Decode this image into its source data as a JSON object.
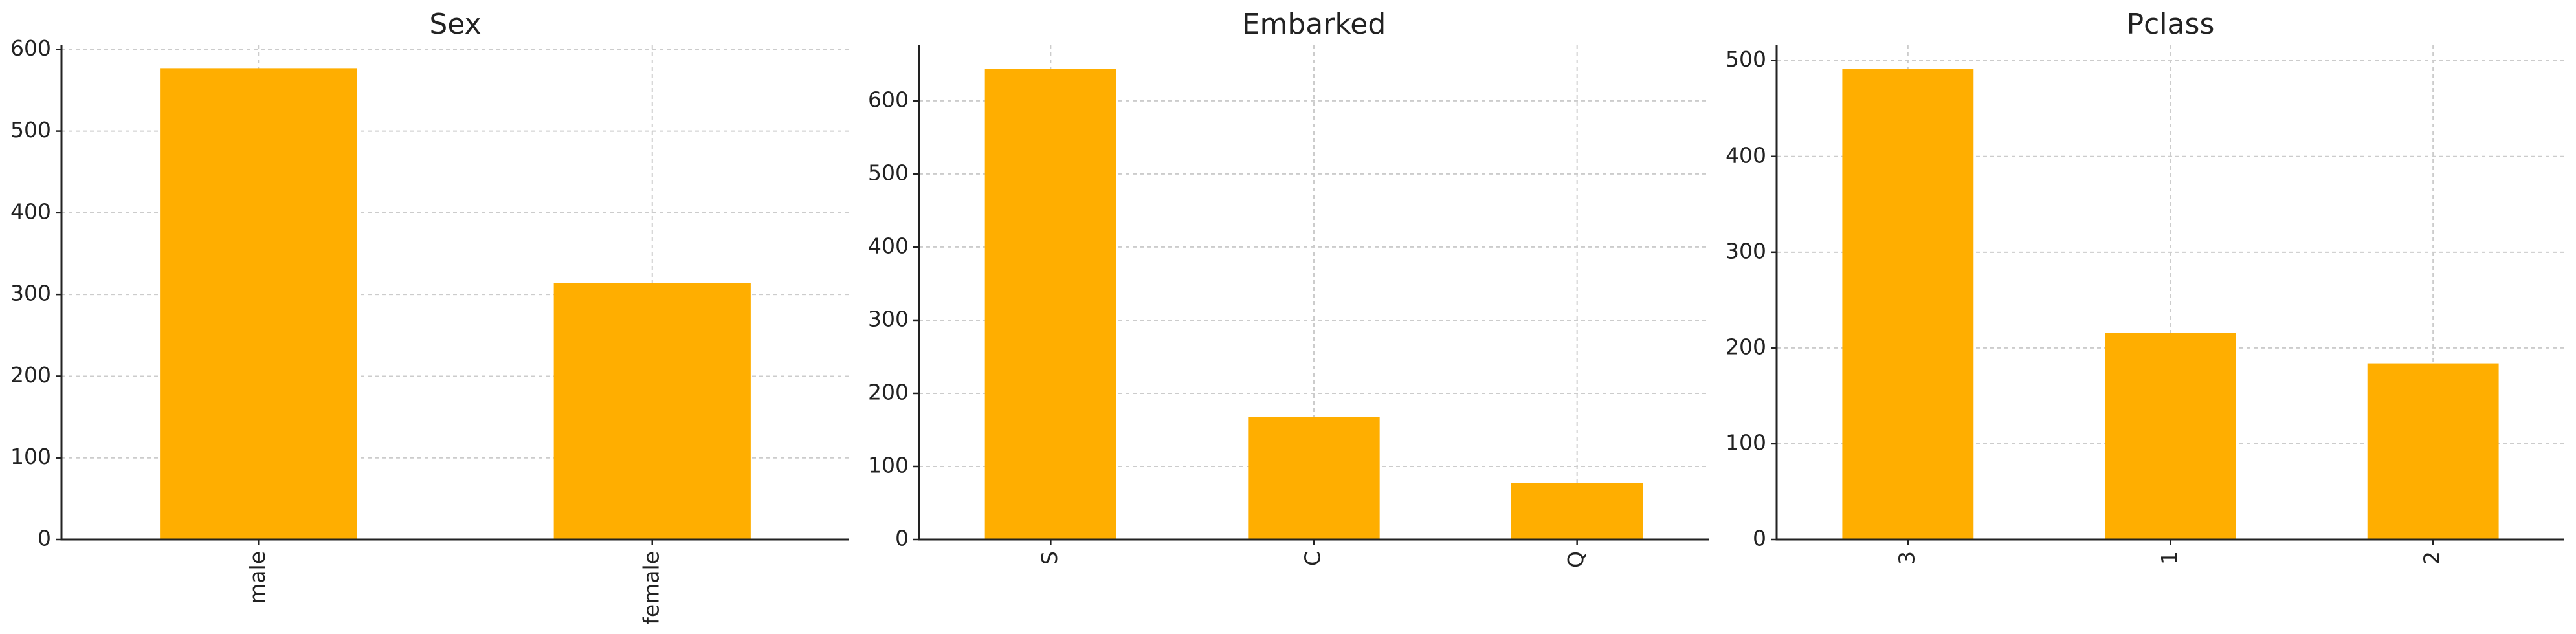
{
  "colors": {
    "bar": "#FFAE00",
    "grid": "#cccccc",
    "axis": "#222222",
    "text": "#222222"
  },
  "chart_data": [
    {
      "type": "bar",
      "title": "Sex",
      "categories": [
        "male",
        "female"
      ],
      "values": [
        577,
        314
      ],
      "ylim": [
        0,
        605
      ],
      "yticks": [
        0,
        100,
        200,
        300,
        400,
        500,
        600
      ],
      "xlabel": "",
      "ylabel": "",
      "grid": true,
      "xtick_rotation": "vertical"
    },
    {
      "type": "bar",
      "title": "Embarked",
      "categories": [
        "S",
        "C",
        "Q"
      ],
      "values": [
        644,
        168,
        77
      ],
      "ylim": [
        0,
        676
      ],
      "yticks": [
        0,
        100,
        200,
        300,
        400,
        500,
        600
      ],
      "xlabel": "",
      "ylabel": "",
      "grid": true,
      "xtick_rotation": "vertical"
    },
    {
      "type": "bar",
      "title": "Pclass",
      "categories": [
        "3",
        "1",
        "2"
      ],
      "values": [
        491,
        216,
        184
      ],
      "ylim": [
        0,
        516
      ],
      "yticks": [
        0,
        100,
        200,
        300,
        400,
        500
      ],
      "xlabel": "",
      "ylabel": "",
      "grid": true,
      "xtick_rotation": "vertical"
    }
  ]
}
